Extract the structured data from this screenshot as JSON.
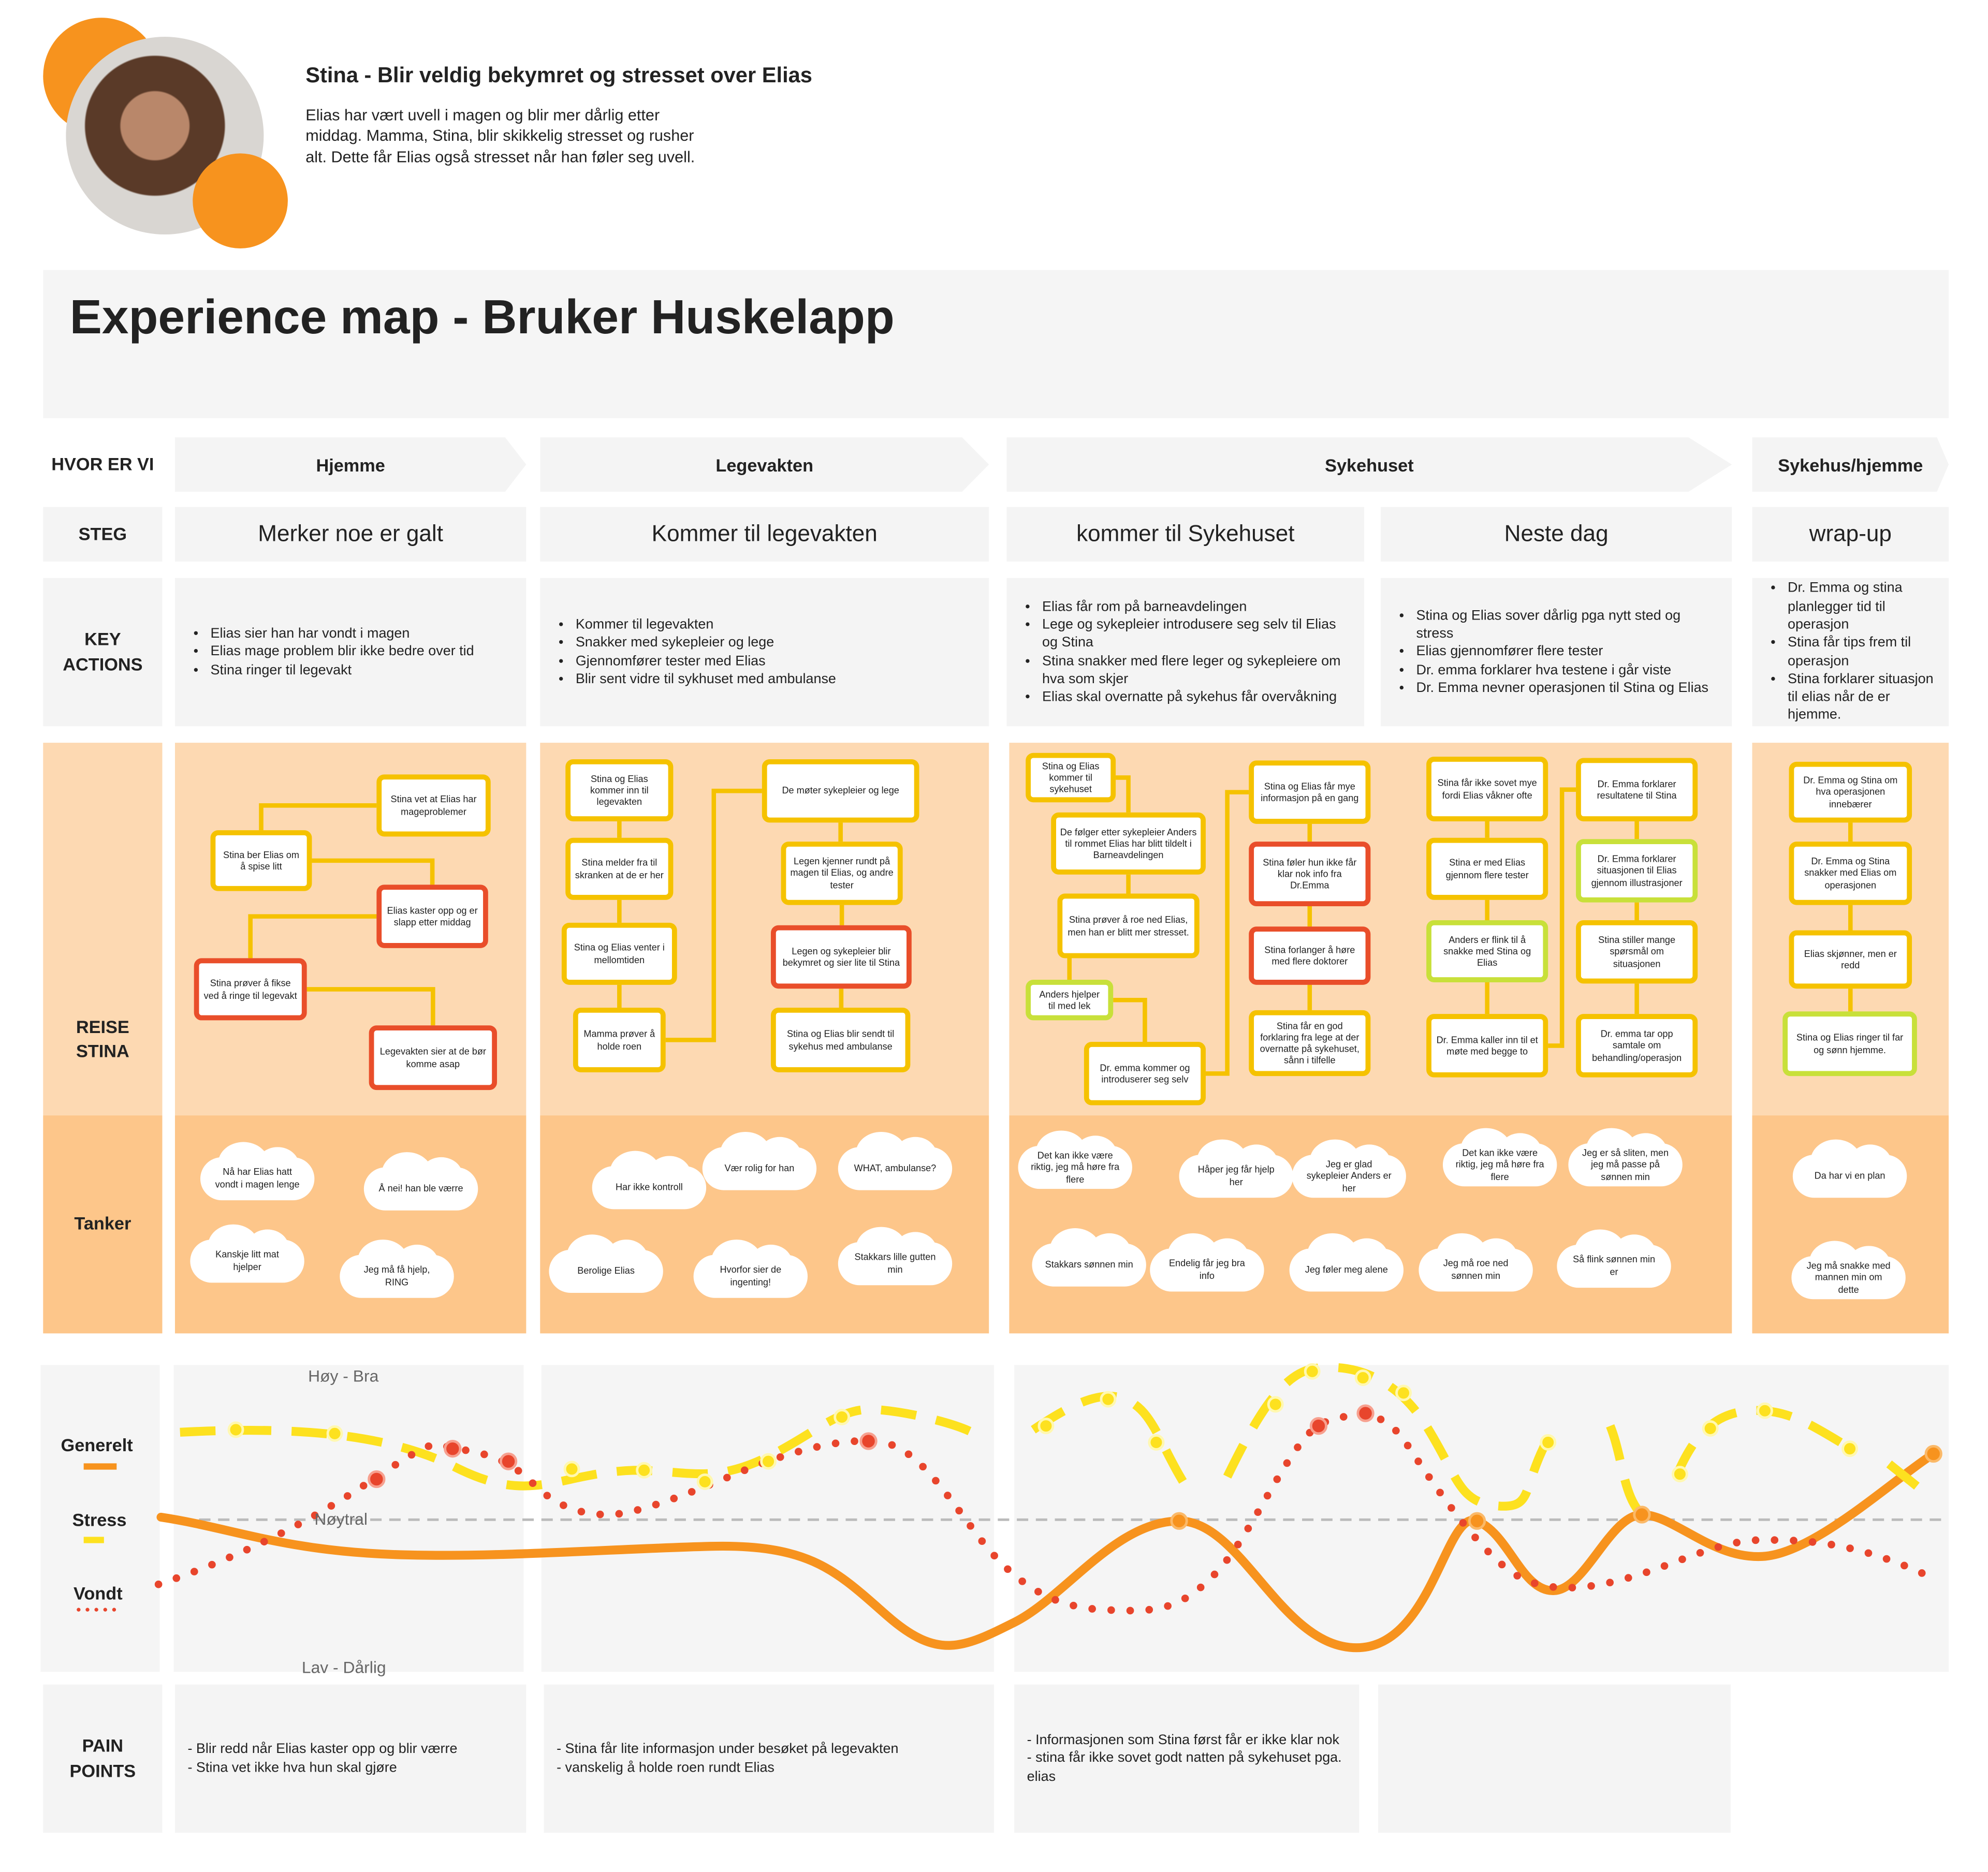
{
  "persona": {
    "title": "Stina - Blir veldig bekymret og stresset over Elias",
    "description": "Elias har vært uvell i magen og blir mer dårlig etter middag. Mamma, Stina, blir skikkelig stresset og rusher alt. Dette får Elias også stresset når han føler seg uvell."
  },
  "title": "Experience map - Bruker Huskelapp",
  "row_labels": {
    "where": "HVOR ER VI",
    "steps": "STEG",
    "key_actions": "KEY ACTIONS",
    "journey": "REISE STINA",
    "thoughts": "Tanker",
    "pain_points": "PAIN POINTS"
  },
  "phases": [
    "Hjemme",
    "Legevakten",
    "Sykehuset",
    "Sykehus/hjemme"
  ],
  "steps": [
    {
      "name": "Merker noe er galt",
      "key_actions": [
        "Elias sier han har vondt i magen",
        "Elias mage problem blir ikke bedre over tid",
        "Stina ringer til legevakt"
      ],
      "journey": [
        {
          "text": "Stina vet at Elias har mageproblemer",
          "color": "#f5c200"
        },
        {
          "text": "Stina ber Elias om å spise litt",
          "color": "#f5c200"
        },
        {
          "text": "Elias kaster opp og er slapp etter middag",
          "color": "#e94e2a"
        },
        {
          "text": "Stina prøver å fikse ved å ringe til legevakt",
          "color": "#e94e2a"
        },
        {
          "text": "Legevakten sier at de bør komme asap",
          "color": "#e94e2a"
        }
      ],
      "thoughts": [
        "Nå har Elias hatt vondt i magen lenge",
        "Å nei! han ble værre",
        "Kanskje litt mat hjelper",
        "Jeg må få hjelp, RING"
      ],
      "pain_points": [
        "- Blir redd når Elias kaster opp og blir værre",
        "- Stina vet ikke hva hun skal gjøre"
      ]
    },
    {
      "name": "Kommer til legevakten",
      "key_actions": [
        "Kommer til legevakten",
        "Snakker med sykepleier og lege",
        "Gjennomfører tester med Elias",
        "Blir sent vidre til sykhuset med ambulanse"
      ],
      "journey": [
        {
          "text": "Stina og Elias kommer inn til legevakten",
          "color": "#f5c200"
        },
        {
          "text": "Stina melder fra til skranken at de er her",
          "color": "#f5c200"
        },
        {
          "text": "Stina og Elias venter i mellomtiden",
          "color": "#f5c200"
        },
        {
          "text": "Mamma prøver å holde roen",
          "color": "#f5c200"
        },
        {
          "text": "De møter sykepleier og lege",
          "color": "#f5c200"
        },
        {
          "text": "Legen kjenner rundt på magen til Elias, og andre tester",
          "color": "#f5c200"
        },
        {
          "text": "Legen og sykepleier blir bekymret og sier lite til Stina",
          "color": "#e94e2a"
        },
        {
          "text": "Stina og Elias blir sendt til sykehus med ambulanse",
          "color": "#f5c200"
        }
      ],
      "thoughts": [
        "Har ikke kontroll",
        "Vær rolig for han",
        "WHAT, ambulanse?",
        "Berolige Elias",
        "Hvorfor sier de ingenting!",
        "Stakkars lille gutten min"
      ],
      "pain_points": [
        "- Stina får lite informasjon under besøket på legevakten",
        "- vanskelig å holde roen rundt Elias"
      ]
    },
    {
      "name": "kommer til Sykehuset",
      "key_actions": [
        "Elias får rom på barneavdelingen",
        "Lege og sykepleier introdusere seg selv til Elias og Stina",
        "Stina snakker med flere leger og sykepleiere om hva som skjer",
        "Elias skal overnatte på sykehus får overvåkning"
      ],
      "journey": [
        {
          "text": "Stina og Elias kommer til sykehuset",
          "color": "#f5c200"
        },
        {
          "text": "De følger etter sykepleier Anders til rommet Elias har blitt tildelt i Barneavdelingen",
          "color": "#f5c200"
        },
        {
          "text": "Stina prøver å roe ned Elias, men han er blitt mer stresset.",
          "color": "#f5c200"
        },
        {
          "text": "Anders hjelper til med lek",
          "color": "#c8e03a"
        },
        {
          "text": "Dr. emma kommer og introduserer seg selv",
          "color": "#f5c200"
        },
        {
          "text": "Stina og Elias får mye informasjon på en gang",
          "color": "#f5c200"
        },
        {
          "text": "Stina føler hun ikke får klar nok info fra Dr.Emma",
          "color": "#e94e2a"
        },
        {
          "text": "Stina forlanger å høre med flere doktorer",
          "color": "#e94e2a"
        },
        {
          "text": "Stina får en god forklaring fra lege at der overnatte på sykehuset, sånn i tilfelle",
          "color": "#f5c200"
        }
      ],
      "thoughts": [
        "Det kan ikke være riktig, jeg må høre fra flere",
        "Håper jeg får hjelp her",
        "Jeg er glad sykepleier Anders er her",
        "Stakkars sønnen min",
        "Endelig får jeg bra info",
        "Jeg føler meg alene"
      ],
      "pain_points": [
        "- Informasjonen som Stina først får er ikke klar nok",
        "- stina får ikke sovet godt natten på sykehuset pga. elias"
      ]
    },
    {
      "name": "Neste dag",
      "key_actions": [
        "Stina og Elias sover dårlig pga nytt sted og stress",
        "Elias gjennomfører flere tester",
        "Dr. emma forklarer hva testene i går viste",
        "Dr. Emma nevner operasjonen til Stina og Elias"
      ],
      "journey": [
        {
          "text": "Stina får ikke sovet mye fordi Elias våkner ofte",
          "color": "#f5c200"
        },
        {
          "text": "Stina er med Elias gjennom flere tester",
          "color": "#f5c200"
        },
        {
          "text": "Anders er flink til å snakke med Stina og Elias",
          "color": "#c8e03a"
        },
        {
          "text": "Dr. Emma kaller inn til et møte med begge to",
          "color": "#f5c200"
        },
        {
          "text": "Dr. Emma forklarer resultatene til Stina",
          "color": "#f5c200"
        },
        {
          "text": "Dr. Emma forklarer situasjonen til Elias gjennom illustrasjoner",
          "color": "#c8e03a"
        },
        {
          "text": "Stina stiller mange spørsmål om situasjonen",
          "color": "#f5c200"
        },
        {
          "text": "Dr. emma tar opp samtale om behandling/operasjon",
          "color": "#f5c200"
        }
      ],
      "thoughts": [
        "Det kan ikke være riktig, jeg må høre fra flere",
        "Jeg er så sliten, men jeg må passe på sønnen min",
        "Jeg må roe ned sønnen min",
        "Så flink sønnen min er"
      ],
      "pain_points": []
    },
    {
      "name": "wrap-up",
      "key_actions": [
        "Dr. Emma og stina planlegger tid til operasjon",
        "Stina får tips frem til operasjon",
        "Stina forklarer situasjon til elias når de er hjemme."
      ],
      "journey": [
        {
          "text": "Dr. Emma og Stina om hva operasjonen innebærer",
          "color": "#f5c200"
        },
        {
          "text": "Dr. Emma og Stina snakker med Elias om operasjonen",
          "color": "#f5c200"
        },
        {
          "text": "Elias skjønner, men er redd",
          "color": "#f5c200"
        },
        {
          "text": "Stina og Elias ringer til far og sønn hjemme.",
          "color": "#c8e03a"
        }
      ],
      "thoughts": [
        "Da har vi en plan",
        "Jeg må snakke med mannen min om dette"
      ]
    }
  ],
  "emotion_graph": {
    "legend": [
      "Generelt",
      "Stress",
      "Vondt"
    ],
    "levels": {
      "high": "Høy - Bra",
      "neutral": "Nøytral",
      "low": "Lav - Dårlig"
    }
  }
}
